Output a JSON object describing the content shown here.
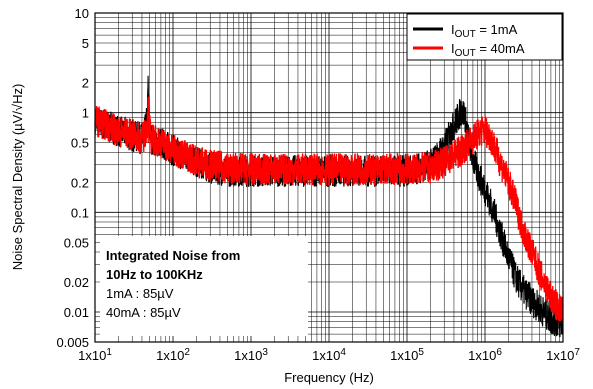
{
  "chart_data": {
    "type": "line",
    "xlabel": "Frequency (Hz)",
    "ylabel": "Noise Spectral Density (µV/√Hz)",
    "xscale": "log",
    "yscale": "log",
    "xlim": [
      10,
      10000000
    ],
    "ylim": [
      0.005,
      10
    ],
    "grid": true,
    "legend": "top-right",
    "x_ticks": [
      {
        "v": 10,
        "b": "1x10",
        "e": "1"
      },
      {
        "v": 100,
        "b": "1x10",
        "e": "2"
      },
      {
        "v": 1000,
        "b": "1x10",
        "e": "3"
      },
      {
        "v": 10000,
        "b": "1x10",
        "e": "4"
      },
      {
        "v": 100000,
        "b": "1x10",
        "e": "5"
      },
      {
        "v": 1000000,
        "b": "1x10",
        "e": "6"
      },
      {
        "v": 10000000,
        "b": "1x10",
        "e": "7"
      }
    ],
    "y_ticks": [
      {
        "v": 10,
        "label": "10"
      },
      {
        "v": 5,
        "label": "5"
      },
      {
        "v": 2,
        "label": "2"
      },
      {
        "v": 1,
        "label": "1"
      },
      {
        "v": 0.5,
        "label": "0.5"
      },
      {
        "v": 0.2,
        "label": "0.2"
      },
      {
        "v": 0.1,
        "label": "0.1"
      },
      {
        "v": 0.05,
        "label": "0.05"
      },
      {
        "v": 0.02,
        "label": "0.02"
      },
      {
        "v": 0.01,
        "label": "0.01"
      },
      {
        "v": 0.005,
        "label": "0.005"
      }
    ],
    "series": [
      {
        "name_main": "I",
        "name_sub": "OUT",
        "name_rest": " = 1mA",
        "color": "#000000",
        "points": [
          [
            10,
            0.8
          ],
          [
            14,
            0.75
          ],
          [
            20,
            0.65
          ],
          [
            30,
            0.58
          ],
          [
            42,
            0.55
          ],
          [
            47,
            0.9
          ],
          [
            48,
            2.1
          ],
          [
            49,
            0.9
          ],
          [
            52,
            0.55
          ],
          [
            70,
            0.5
          ],
          [
            100,
            0.42
          ],
          [
            150,
            0.36
          ],
          [
            200,
            0.32
          ],
          [
            300,
            0.28
          ],
          [
            500,
            0.26
          ],
          [
            1000,
            0.26
          ],
          [
            2000,
            0.26
          ],
          [
            5000,
            0.26
          ],
          [
            10000,
            0.26
          ],
          [
            20000,
            0.26
          ],
          [
            50000,
            0.26
          ],
          [
            100000,
            0.26
          ],
          [
            200000,
            0.3
          ],
          [
            300000,
            0.45
          ],
          [
            400000,
            0.75
          ],
          [
            500000,
            1.05
          ],
          [
            550000,
            0.95
          ],
          [
            600000,
            0.6
          ],
          [
            700000,
            0.35
          ],
          [
            800000,
            0.25
          ],
          [
            1000000,
            0.17
          ],
          [
            1300000,
            0.1
          ],
          [
            1600000,
            0.06
          ],
          [
            2000000,
            0.035
          ],
          [
            2500000,
            0.022
          ],
          [
            3000000,
            0.017
          ],
          [
            4000000,
            0.013
          ],
          [
            5000000,
            0.011
          ],
          [
            7000000,
            0.0085
          ],
          [
            10000000,
            0.0075
          ]
        ]
      },
      {
        "name_main": "I",
        "name_sub": "OUT",
        "name_rest": " = 40mA",
        "color": "#ff0000",
        "points": [
          [
            10,
            0.85
          ],
          [
            14,
            0.75
          ],
          [
            20,
            0.65
          ],
          [
            30,
            0.6
          ],
          [
            42,
            0.55
          ],
          [
            47,
            0.8
          ],
          [
            48,
            1.2
          ],
          [
            49,
            0.8
          ],
          [
            52,
            0.55
          ],
          [
            70,
            0.5
          ],
          [
            100,
            0.42
          ],
          [
            150,
            0.37
          ],
          [
            200,
            0.33
          ],
          [
            300,
            0.3
          ],
          [
            500,
            0.28
          ],
          [
            1000,
            0.27
          ],
          [
            2000,
            0.27
          ],
          [
            5000,
            0.27
          ],
          [
            10000,
            0.27
          ],
          [
            20000,
            0.27
          ],
          [
            50000,
            0.27
          ],
          [
            100000,
            0.27
          ],
          [
            200000,
            0.28
          ],
          [
            300000,
            0.32
          ],
          [
            500000,
            0.42
          ],
          [
            700000,
            0.55
          ],
          [
            900000,
            0.65
          ],
          [
            1000000,
            0.68
          ],
          [
            1200000,
            0.55
          ],
          [
            1500000,
            0.35
          ],
          [
            2000000,
            0.2
          ],
          [
            2500000,
            0.12
          ],
          [
            3000000,
            0.07
          ],
          [
            4000000,
            0.04
          ],
          [
            5000000,
            0.025
          ],
          [
            6000000,
            0.018
          ],
          [
            7000000,
            0.014
          ],
          [
            8000000,
            0.012
          ],
          [
            10000000,
            0.01
          ]
        ]
      }
    ],
    "annotation": {
      "lines": [
        {
          "text": "Integrated Noise from",
          "bold": true
        },
        {
          "text": "10Hz to 100KHz",
          "bold": true
        },
        {
          "text": "1mA : 85µV",
          "bold": false
        },
        {
          "text": "40mA : 85µV",
          "bold": false
        }
      ]
    }
  }
}
